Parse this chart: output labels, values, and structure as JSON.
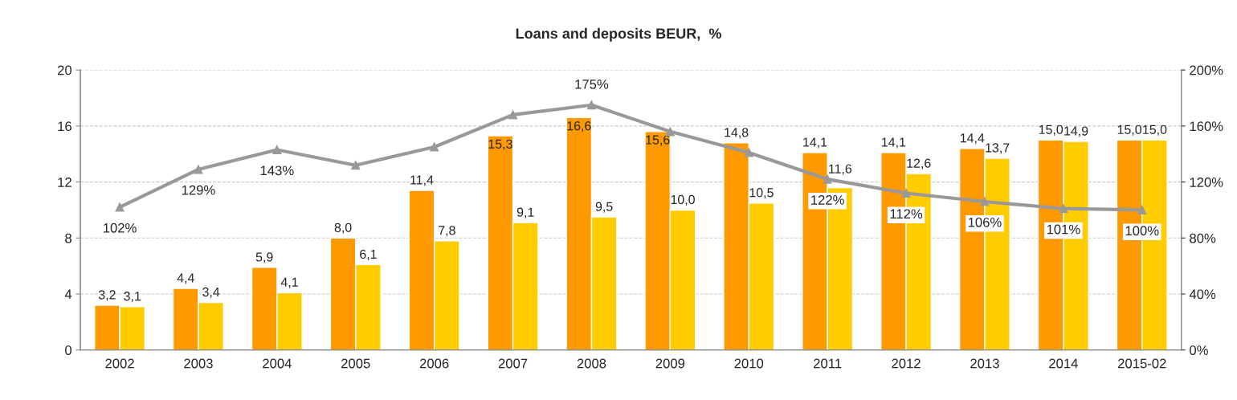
{
  "chart_data": {
    "type": "bar",
    "title": "Loans and deposits BEUR,  %",
    "categories": [
      "2002",
      "2003",
      "2004",
      "2005",
      "2006",
      "2007",
      "2008",
      "2009",
      "2010",
      "2011",
      "2012",
      "2013",
      "2014",
      "2015-02"
    ],
    "series": [
      {
        "color": "#ff9900",
        "values": [
          3.2,
          4.4,
          5.9,
          8.0,
          11.4,
          15.3,
          16.6,
          15.6,
          14.8,
          14.1,
          14.1,
          14.4,
          15.0,
          15.0
        ],
        "value_labels": [
          "3,2",
          "4,4",
          "5,9",
          "8,0",
          "11,4",
          "15,3",
          "16,6",
          "15,6",
          "14,8",
          "14,1",
          "14,1",
          "14,4",
          "15,0",
          "15,0"
        ]
      },
      {
        "color": "#ffcc00",
        "values": [
          3.1,
          3.4,
          4.1,
          6.1,
          7.8,
          9.1,
          9.5,
          10.0,
          10.5,
          11.6,
          12.6,
          13.7,
          14.9,
          15.0
        ],
        "value_labels": [
          "3,1",
          "3,4",
          "4,1",
          "6,1",
          "7,8",
          "9,1",
          "9,5",
          "10,0",
          "10,5",
          "11,6",
          "12,6",
          "13,7",
          "14,9",
          "15,0"
        ]
      },
      {
        "type": "line",
        "axis": "y2",
        "color": "#999999",
        "marker": "triangle",
        "values": [
          102,
          129,
          143,
          132,
          145,
          168,
          175,
          156,
          141,
          122,
          112,
          106,
          101,
          100
        ],
        "value_labels": [
          "102%",
          "129%",
          "143%",
          null,
          null,
          null,
          "175%",
          null,
          null,
          "122%",
          "112%",
          "106%",
          "101%",
          "100%"
        ]
      }
    ],
    "ylim": [
      0,
      20
    ],
    "yticks": [
      0,
      4,
      8,
      12,
      16,
      20
    ],
    "y2lim": [
      0,
      200
    ],
    "y2ticks": [
      {
        "value": 0,
        "label": "0%"
      },
      {
        "value": 40,
        "label": "40%"
      },
      {
        "value": 80,
        "label": "80%"
      },
      {
        "value": 120,
        "label": "120%"
      },
      {
        "value": 160,
        "label": "160%"
      },
      {
        "value": 200,
        "label": "200%"
      }
    ],
    "grid": "y"
  }
}
